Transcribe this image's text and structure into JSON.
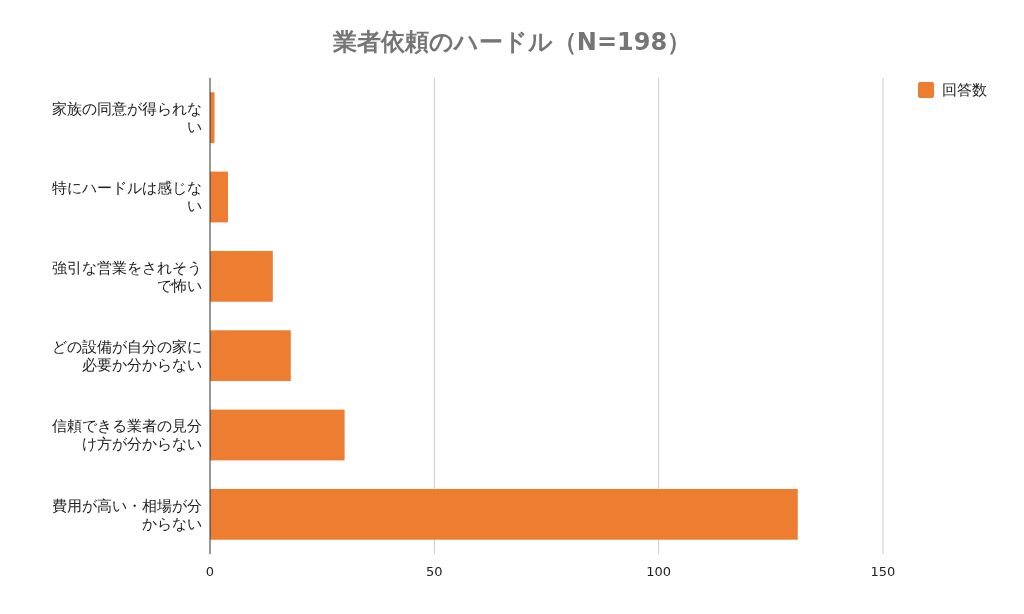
{
  "chart_data": {
    "type": "bar",
    "orientation": "horizontal",
    "title": "業者依頼のハードル（N=198）",
    "categories": [
      "家族の同意が得られない",
      "特にハードルは感じない",
      "強引な営業をされそうで怖い",
      "どの設備が自分の家に必要か分からない",
      "信頼できる業者の見分け方が分からない",
      "費用が高い・相場が分からない"
    ],
    "series": [
      {
        "name": "回答数",
        "color": "#ed7d31",
        "values": [
          1,
          4,
          14,
          18,
          30,
          131
        ]
      }
    ],
    "xlim": [
      0,
      150
    ],
    "xticks": [
      0,
      50,
      100,
      150
    ],
    "grid": "x",
    "legend": "top right"
  }
}
